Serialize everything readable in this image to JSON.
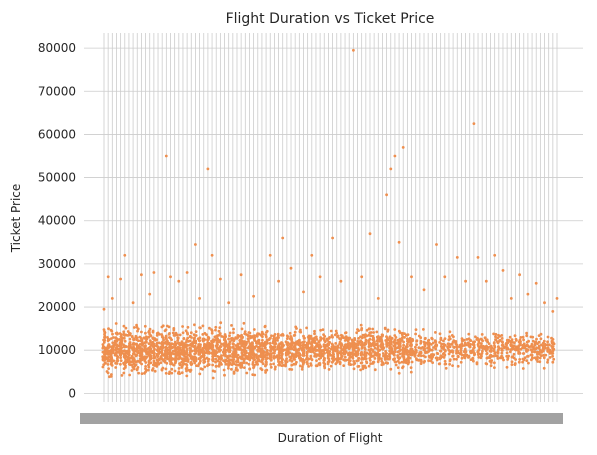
{
  "chart_data": {
    "type": "scatter",
    "title": "Flight Duration vs Ticket Price",
    "xlabel": "Duration of Flight",
    "ylabel": "Ticket Price",
    "x_category_count": 110,
    "ylim": [
      -2000,
      83500
    ],
    "yticks": [
      0,
      10000,
      20000,
      30000,
      40000,
      50000,
      60000,
      70000,
      80000
    ],
    "grid": true,
    "marker_color": "#EE8F4F",
    "grid_color": "#CCCCCC",
    "dense_band": {
      "segments": [
        {
          "x_from": 0,
          "x_to": 40,
          "y_low": 3000,
          "y_high": 17000
        },
        {
          "x_from": 40,
          "x_to": 75,
          "y_low": 4000,
          "y_high": 16500
        },
        {
          "x_from": 75,
          "x_to": 109,
          "y_low": 5000,
          "y_high": 15500
        }
      ]
    },
    "outliers": [
      {
        "x": 0,
        "y": 19500
      },
      {
        "x": 1,
        "y": 27000
      },
      {
        "x": 2,
        "y": 22000
      },
      {
        "x": 4,
        "y": 26500
      },
      {
        "x": 5,
        "y": 32000
      },
      {
        "x": 7,
        "y": 21000
      },
      {
        "x": 9,
        "y": 27500
      },
      {
        "x": 11,
        "y": 23000
      },
      {
        "x": 12,
        "y": 28000
      },
      {
        "x": 15,
        "y": 55000
      },
      {
        "x": 16,
        "y": 27000
      },
      {
        "x": 18,
        "y": 26000
      },
      {
        "x": 20,
        "y": 28000
      },
      {
        "x": 22,
        "y": 34500
      },
      {
        "x": 23,
        "y": 22000
      },
      {
        "x": 25,
        "y": 52000
      },
      {
        "x": 26,
        "y": 32000
      },
      {
        "x": 28,
        "y": 26500
      },
      {
        "x": 30,
        "y": 21000
      },
      {
        "x": 33,
        "y": 27500
      },
      {
        "x": 36,
        "y": 22500
      },
      {
        "x": 40,
        "y": 32000
      },
      {
        "x": 42,
        "y": 26000
      },
      {
        "x": 43,
        "y": 36000
      },
      {
        "x": 45,
        "y": 29000
      },
      {
        "x": 48,
        "y": 23500
      },
      {
        "x": 50,
        "y": 32000
      },
      {
        "x": 52,
        "y": 27000
      },
      {
        "x": 55,
        "y": 36000
      },
      {
        "x": 57,
        "y": 26000
      },
      {
        "x": 60,
        "y": 79500
      },
      {
        "x": 62,
        "y": 27000
      },
      {
        "x": 64,
        "y": 37000
      },
      {
        "x": 66,
        "y": 22000
      },
      {
        "x": 68,
        "y": 46000
      },
      {
        "x": 69,
        "y": 52000
      },
      {
        "x": 70,
        "y": 55000
      },
      {
        "x": 71,
        "y": 35000
      },
      {
        "x": 72,
        "y": 57000
      },
      {
        "x": 74,
        "y": 27000
      },
      {
        "x": 77,
        "y": 24000
      },
      {
        "x": 80,
        "y": 34500
      },
      {
        "x": 82,
        "y": 27000
      },
      {
        "x": 85,
        "y": 31500
      },
      {
        "x": 87,
        "y": 26000
      },
      {
        "x": 89,
        "y": 62500
      },
      {
        "x": 90,
        "y": 31500
      },
      {
        "x": 92,
        "y": 26000
      },
      {
        "x": 94,
        "y": 32000
      },
      {
        "x": 96,
        "y": 28500
      },
      {
        "x": 98,
        "y": 22000
      },
      {
        "x": 100,
        "y": 27500
      },
      {
        "x": 102,
        "y": 23000
      },
      {
        "x": 104,
        "y": 25500
      },
      {
        "x": 106,
        "y": 21000
      },
      {
        "x": 108,
        "y": 19000
      },
      {
        "x": 109,
        "y": 22000
      }
    ]
  }
}
